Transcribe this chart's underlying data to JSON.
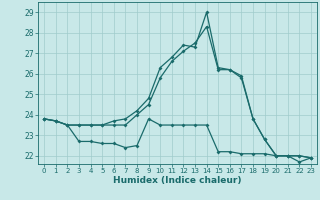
{
  "title": "",
  "xlabel": "Humidex (Indice chaleur)",
  "background_color": "#c8e8e8",
  "grid_color": "#a0cccc",
  "line_color": "#1a6b6b",
  "xlim": [
    -0.5,
    23.5
  ],
  "ylim": [
    21.6,
    29.5
  ],
  "yticks": [
    22,
    23,
    24,
    25,
    26,
    27,
    28,
    29
  ],
  "xticks": [
    0,
    1,
    2,
    3,
    4,
    5,
    6,
    7,
    8,
    9,
    10,
    11,
    12,
    13,
    14,
    15,
    16,
    17,
    18,
    19,
    20,
    21,
    22,
    23
  ],
  "line1_x": [
    0,
    1,
    2,
    3,
    4,
    5,
    6,
    7,
    8,
    9,
    10,
    11,
    12,
    13,
    14,
    15,
    16,
    17,
    18,
    19,
    20,
    21,
    22,
    23
  ],
  "line1_y": [
    23.8,
    23.7,
    23.5,
    22.7,
    22.7,
    22.6,
    22.6,
    22.4,
    22.5,
    23.8,
    23.5,
    23.5,
    23.5,
    23.5,
    23.5,
    22.2,
    22.2,
    22.1,
    22.1,
    22.1,
    22.0,
    22.0,
    21.7,
    21.9
  ],
  "line2_x": [
    0,
    1,
    2,
    3,
    4,
    5,
    6,
    7,
    8,
    9,
    10,
    11,
    12,
    13,
    14,
    15,
    16,
    17,
    18,
    19,
    20,
    21,
    22,
    23
  ],
  "line2_y": [
    23.8,
    23.7,
    23.5,
    23.5,
    23.5,
    23.5,
    23.5,
    23.5,
    24.0,
    24.5,
    25.8,
    26.6,
    27.1,
    27.5,
    28.3,
    26.2,
    26.2,
    25.8,
    23.8,
    22.8,
    22.0,
    22.0,
    22.0,
    21.9
  ],
  "line3_x": [
    0,
    1,
    2,
    3,
    4,
    5,
    6,
    7,
    8,
    9,
    10,
    11,
    12,
    13,
    14,
    15,
    16,
    17,
    18,
    19,
    20,
    21,
    22,
    23
  ],
  "line3_y": [
    23.8,
    23.7,
    23.5,
    23.5,
    23.5,
    23.5,
    23.7,
    23.8,
    24.2,
    24.8,
    26.3,
    26.8,
    27.4,
    27.3,
    29.0,
    26.3,
    26.2,
    25.9,
    23.8,
    22.8,
    22.0,
    22.0,
    22.0,
    21.9
  ]
}
